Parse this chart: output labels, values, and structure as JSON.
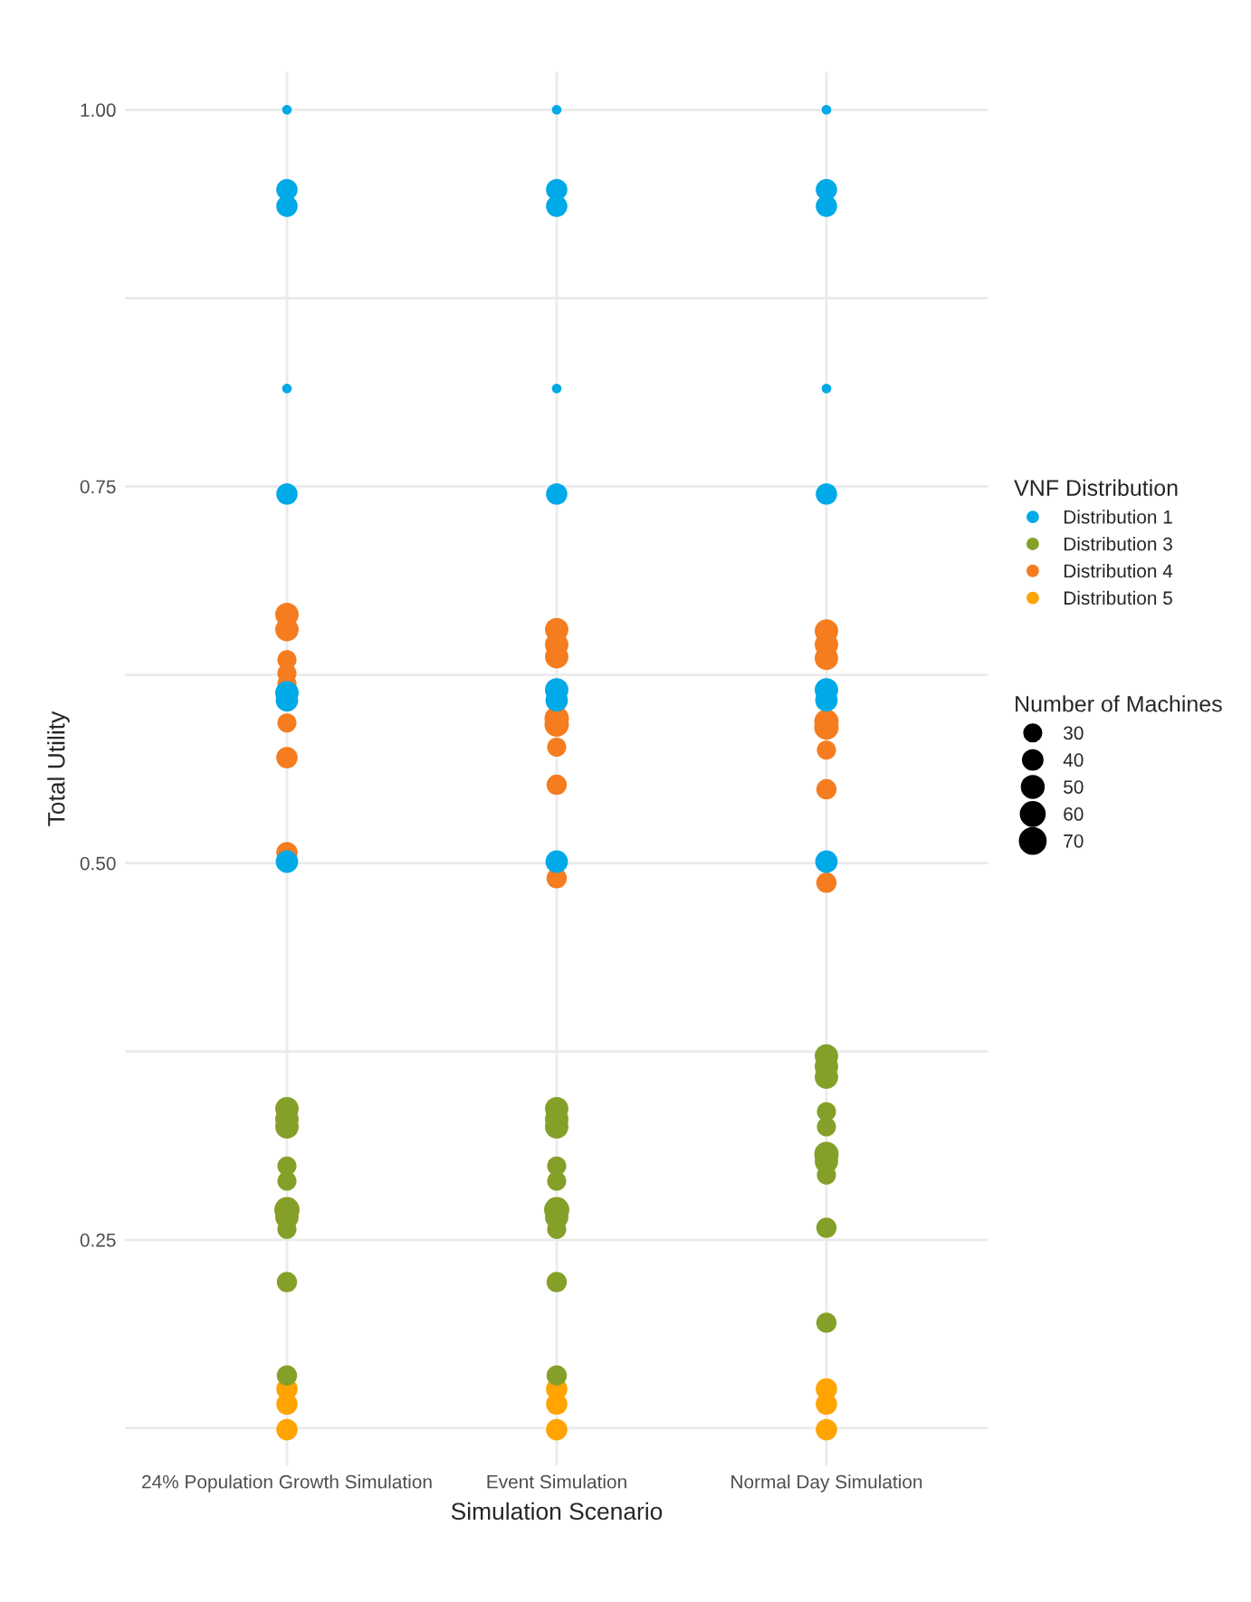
{
  "chart_data": {
    "type": "bubble",
    "xlabel": "Simulation Scenario",
    "ylabel": "Total Utility",
    "legend_title": [
      "VNF Distribution",
      "Number of Machines"
    ],
    "categories": [
      "24% Population Growth Simulation",
      "Event Simulation",
      "Normal Day Simulation"
    ],
    "ylim": [
      0.1,
      1.025
    ],
    "yticks": [
      {
        "value": 0.125,
        "label": null
      },
      {
        "value": 0.25,
        "label": "0.25"
      },
      {
        "value": 0.375,
        "label": null
      },
      {
        "value": 0.5,
        "label": "0.50"
      },
      {
        "value": 0.625,
        "label": null
      },
      {
        "value": 0.75,
        "label": "0.75"
      },
      {
        "value": 0.875,
        "label": null
      },
      {
        "value": 1.0,
        "label": "1.00"
      }
    ],
    "size_legend": [
      30,
      40,
      50,
      60,
      70
    ],
    "grid": true,
    "legend": "right",
    "marker": "circle",
    "series": [
      {
        "name": "Distribution 1",
        "color": "#00a9e8",
        "x": [
          "24% Population Growth Simulation",
          "24% Population Growth Simulation",
          "24% Population Growth Simulation",
          "24% Population Growth Simulation",
          "24% Population Growth Simulation",
          "24% Population Growth Simulation",
          "24% Population Growth Simulation",
          "24% Population Growth Simulation",
          "Event Simulation",
          "Event Simulation",
          "Event Simulation",
          "Event Simulation",
          "Event Simulation",
          "Event Simulation",
          "Event Simulation",
          "Event Simulation",
          "Normal Day Simulation",
          "Normal Day Simulation",
          "Normal Day Simulation",
          "Normal Day Simulation",
          "Normal Day Simulation",
          "Normal Day Simulation",
          "Normal Day Simulation",
          "Normal Day Simulation"
        ],
        "values": [
          1.0,
          0.947,
          0.936,
          0.815,
          0.745,
          0.613,
          0.608,
          0.501,
          1.0,
          0.947,
          0.936,
          0.815,
          0.745,
          0.615,
          0.608,
          0.501,
          1.0,
          0.947,
          0.936,
          0.815,
          0.745,
          0.615,
          0.608,
          0.501
        ],
        "sizes": [
          10,
          50,
          50,
          10,
          50,
          60,
          55,
          55,
          10,
          50,
          50,
          10,
          50,
          60,
          55,
          55,
          10,
          50,
          50,
          10,
          50,
          60,
          55,
          55
        ]
      },
      {
        "name": "Distribution 3",
        "color": "#85a028",
        "x": [
          "24% Population Growth Simulation",
          "24% Population Growth Simulation",
          "24% Population Growth Simulation",
          "24% Population Growth Simulation",
          "24% Population Growth Simulation",
          "24% Population Growth Simulation",
          "24% Population Growth Simulation",
          "24% Population Growth Simulation",
          "24% Population Growth Simulation",
          "24% Population Growth Simulation",
          "Event Simulation",
          "Event Simulation",
          "Event Simulation",
          "Event Simulation",
          "Event Simulation",
          "Event Simulation",
          "Event Simulation",
          "Event Simulation",
          "Event Simulation",
          "Event Simulation",
          "Normal Day Simulation",
          "Normal Day Simulation",
          "Normal Day Simulation",
          "Normal Day Simulation",
          "Normal Day Simulation",
          "Normal Day Simulation",
          "Normal Day Simulation",
          "Normal Day Simulation",
          "Normal Day Simulation",
          "Normal Day Simulation"
        ],
        "values": [
          0.337,
          0.33,
          0.325,
          0.299,
          0.289,
          0.27,
          0.265,
          0.257,
          0.222,
          0.16,
          0.337,
          0.33,
          0.325,
          0.299,
          0.289,
          0.27,
          0.265,
          0.257,
          0.222,
          0.16,
          0.372,
          0.365,
          0.358,
          0.335,
          0.325,
          0.307,
          0.302,
          0.293,
          0.258,
          0.195
        ],
        "sizes": [
          60,
          60,
          60,
          40,
          40,
          70,
          60,
          40,
          45,
          45,
          60,
          60,
          60,
          40,
          40,
          70,
          60,
          40,
          45,
          45,
          60,
          60,
          60,
          40,
          40,
          65,
          60,
          40,
          45,
          45
        ]
      },
      {
        "name": "Distribution 4",
        "color": "#f57c1f",
        "x": [
          "24% Population Growth Simulation",
          "24% Population Growth Simulation",
          "24% Population Growth Simulation",
          "24% Population Growth Simulation",
          "24% Population Growth Simulation",
          "24% Population Growth Simulation",
          "24% Population Growth Simulation",
          "24% Population Growth Simulation",
          "Event Simulation",
          "Event Simulation",
          "Event Simulation",
          "Event Simulation",
          "Event Simulation",
          "Event Simulation",
          "Event Simulation",
          "Event Simulation",
          "Normal Day Simulation",
          "Normal Day Simulation",
          "Normal Day Simulation",
          "Normal Day Simulation",
          "Normal Day Simulation",
          "Normal Day Simulation",
          "Normal Day Simulation",
          "Normal Day Simulation"
        ],
        "values": [
          0.665,
          0.655,
          0.635,
          0.626,
          0.619,
          0.593,
          0.57,
          0.507,
          0.655,
          0.645,
          0.637,
          0.596,
          0.592,
          0.577,
          0.552,
          0.49,
          0.654,
          0.645,
          0.636,
          0.594,
          0.59,
          0.575,
          0.549,
          0.487
        ],
        "sizes": [
          60,
          60,
          40,
          40,
          40,
          40,
          50,
          50,
          60,
          60,
          60,
          65,
          65,
          40,
          45,
          45,
          60,
          60,
          60,
          65,
          65,
          40,
          45,
          45
        ]
      },
      {
        "name": "Distribution 5",
        "color": "#ffa400",
        "x": [
          "24% Population Growth Simulation",
          "24% Population Growth Simulation",
          "24% Population Growth Simulation",
          "Event Simulation",
          "Event Simulation",
          "Event Simulation",
          "Normal Day Simulation",
          "Normal Day Simulation",
          "Normal Day Simulation"
        ],
        "values": [
          0.151,
          0.141,
          0.124,
          0.151,
          0.141,
          0.124,
          0.151,
          0.141,
          0.124
        ],
        "sizes": [
          50,
          50,
          50,
          50,
          50,
          50,
          50,
          50,
          50
        ]
      }
    ]
  }
}
